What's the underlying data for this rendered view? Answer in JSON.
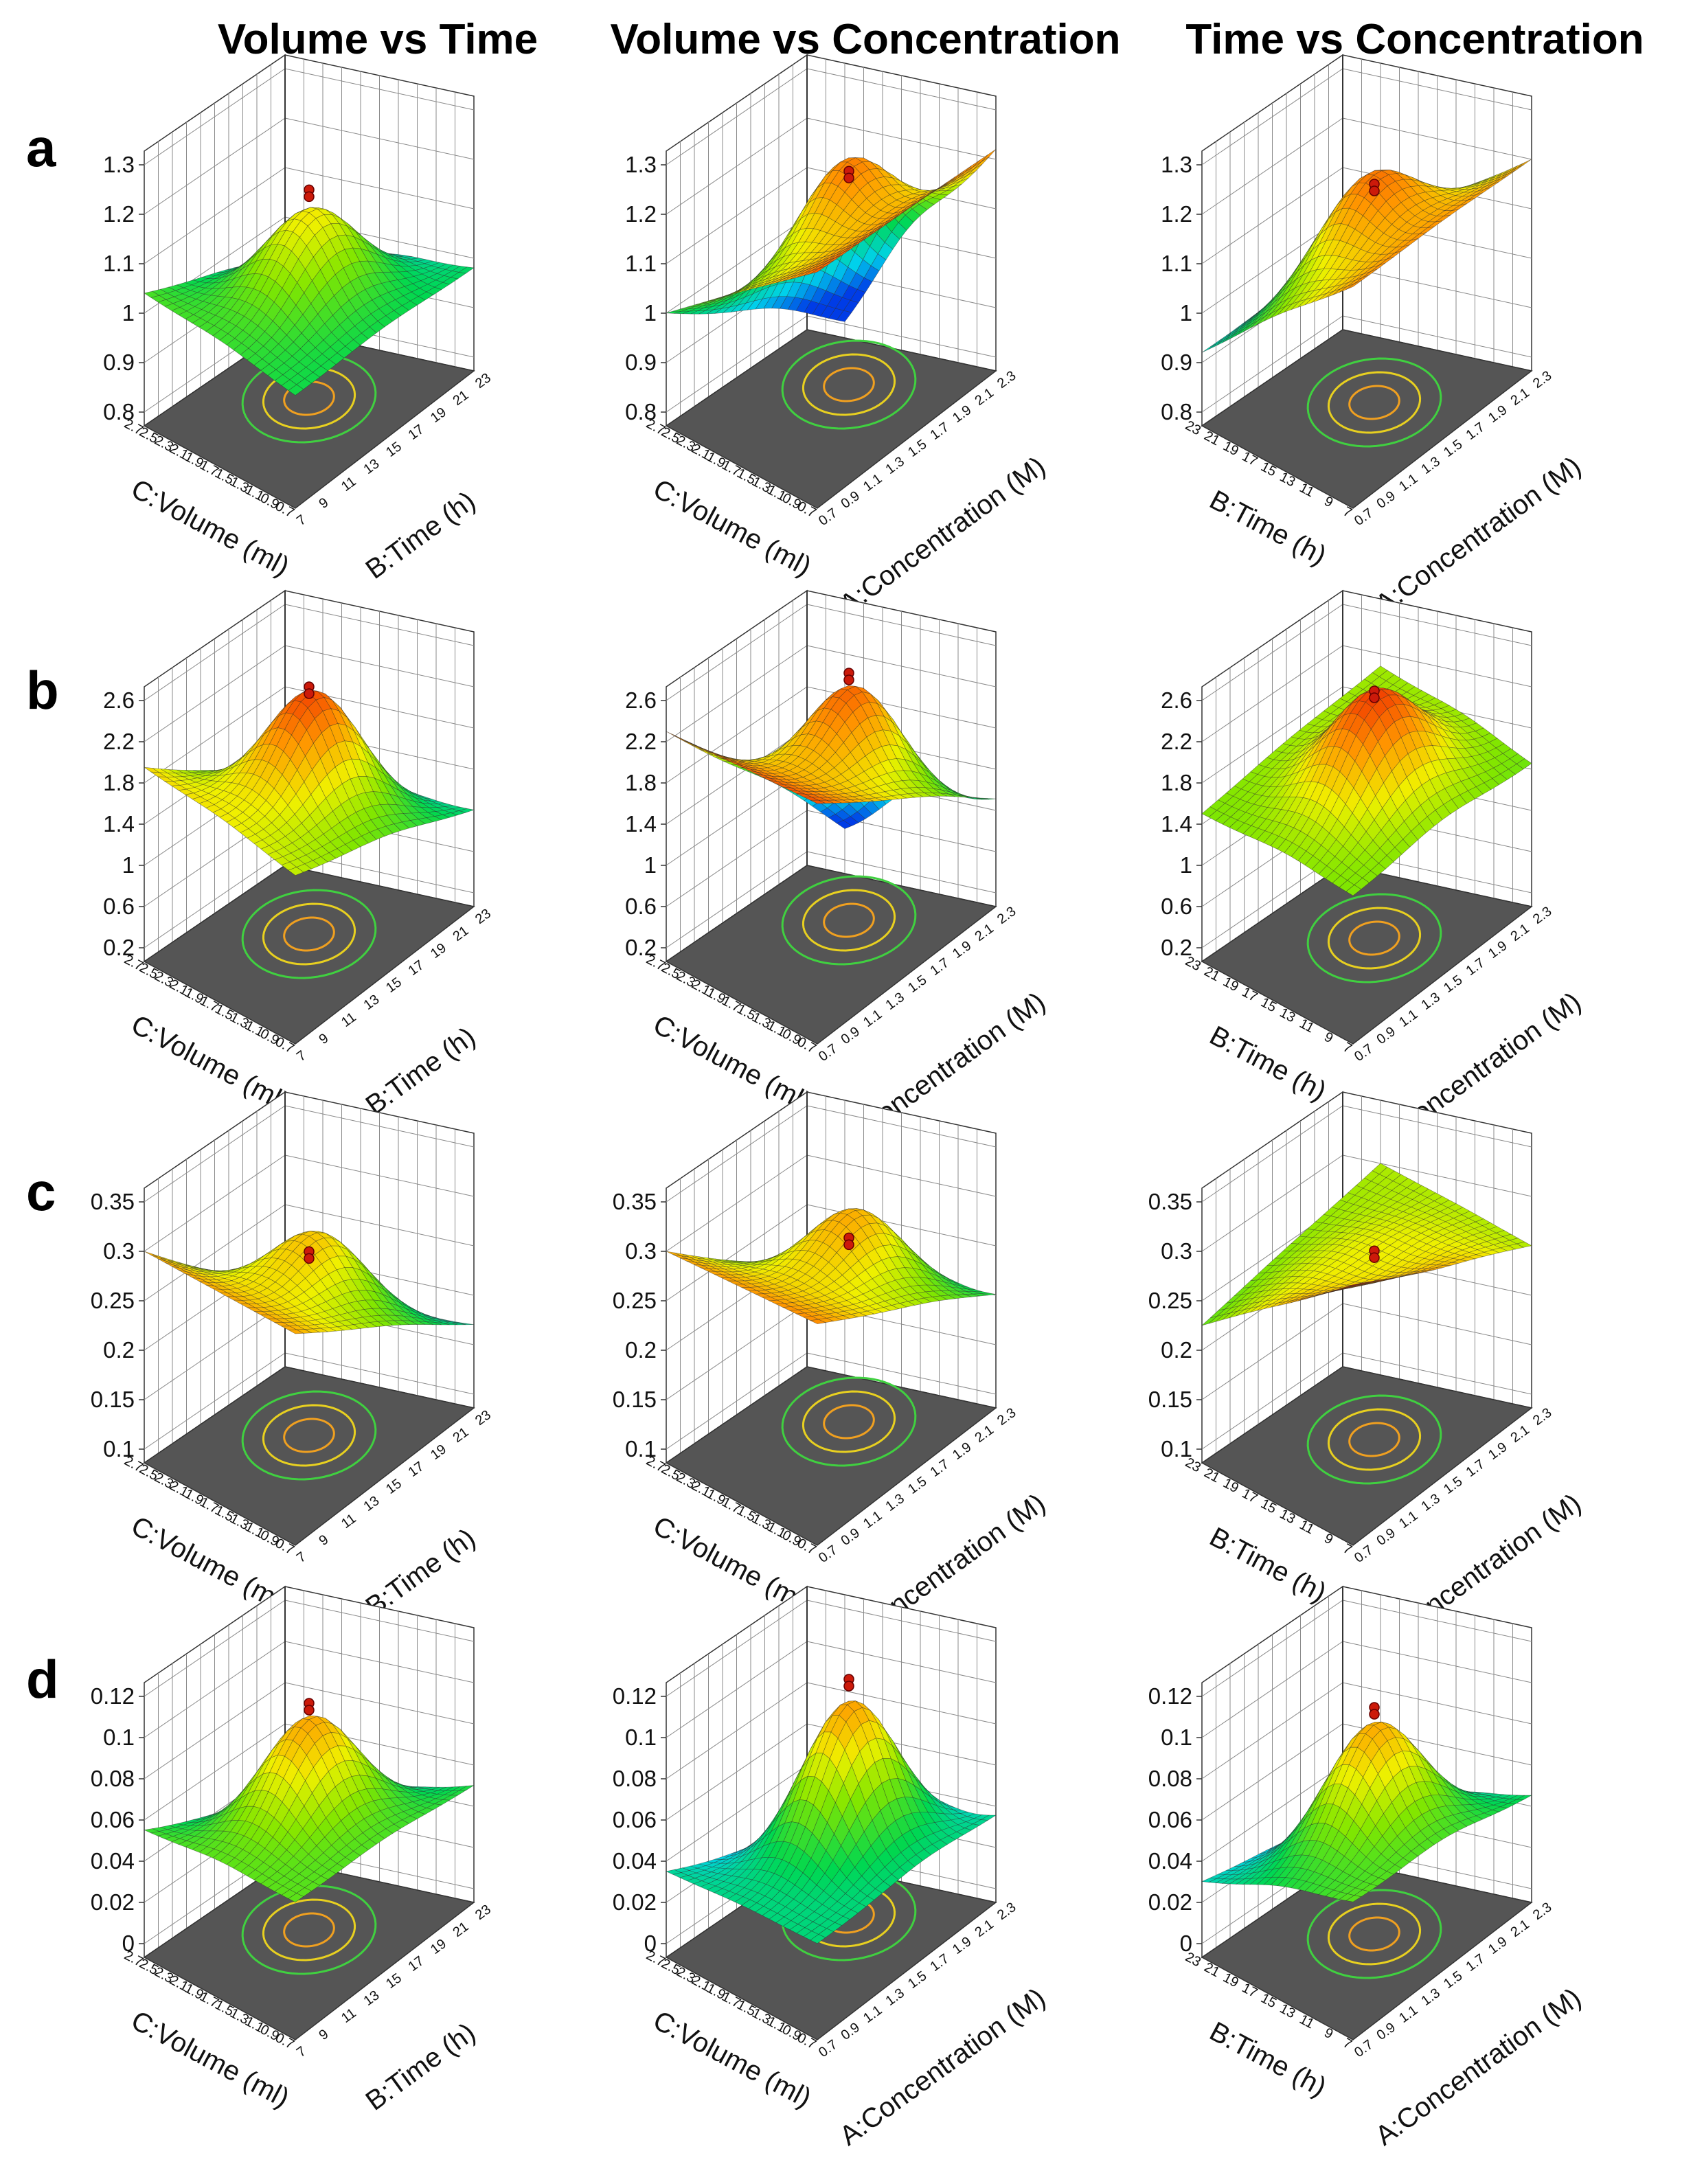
{
  "figure": {
    "column_titles": [
      "Volume vs Time",
      "Volume vs Concentration",
      "Time vs Concentration"
    ],
    "row_labels": [
      "a",
      "b",
      "c",
      "d"
    ]
  },
  "colors": {
    "floor": "#555555",
    "grid": "#8a8a8a",
    "axis": "#333333",
    "marker": "#cc1a0a"
  },
  "chart_data": [
    {
      "type": "surface",
      "row": "a",
      "column_title": "Volume vs Time",
      "model": "vt",
      "zlim": [
        0.8,
        1.3
      ],
      "zticks": [
        "0.8",
        "0.9",
        "1",
        "1.1",
        "1.2",
        "1.3"
      ],
      "xlabel": "C:Volume (ml)",
      "xticks": [
        "0.7",
        "0.9",
        "1.1",
        "1.3",
        "1.5",
        "1.7",
        "1.9",
        "2.1",
        "2.3",
        "2.5",
        "2.7"
      ],
      "ylabel": "B:Time (h)",
      "yticks": [
        "7",
        "9",
        "11",
        "13",
        "15",
        "17",
        "19",
        "21",
        "23"
      ],
      "corners": [
        1.04,
        1.0,
        0.98,
        0.84
      ],
      "peak": 1.18,
      "point": 1.18
    },
    {
      "type": "surface",
      "row": "a",
      "column_title": "Volume vs Concentration",
      "model": "vc",
      "zlim": [
        0.8,
        1.3
      ],
      "zticks": [
        "0.8",
        "0.9",
        "1",
        "1.1",
        "1.2",
        "1.3"
      ],
      "xlabel": "C:Volume (ml)",
      "xticks": [
        "0.7",
        "0.9",
        "1.1",
        "1.3",
        "1.5",
        "1.7",
        "1.9",
        "2.1",
        "2.3",
        "2.5",
        "2.7"
      ],
      "ylabel": "A:Concentration (M)",
      "yticks": [
        "0.7",
        "0.9",
        "1.1",
        "1.3",
        "1.5",
        "1.7",
        "1.9",
        "2.1",
        "2.3"
      ],
      "corners": [
        1.0,
        1.25,
        1.22,
        0.7
      ],
      "peak": 1.26,
      "point": 1.19
    },
    {
      "type": "surface",
      "row": "a",
      "column_title": "Time vs Concentration",
      "model": "tc",
      "zlim": [
        0.8,
        1.3
      ],
      "zticks": [
        "0.8",
        "0.9",
        "1",
        "1.1",
        "1.2",
        "1.3"
      ],
      "xlabel": "B:Time (h)",
      "xticks": [
        "7",
        "9",
        "11",
        "13",
        "15",
        "17",
        "19",
        "21",
        "23"
      ],
      "ylabel": "A:Concentration (M)",
      "yticks": [
        "0.7",
        "0.9",
        "1.1",
        "1.3",
        "1.5",
        "1.7",
        "1.9",
        "2.1",
        "2.3"
      ],
      "corners": [
        0.92,
        1.22,
        1.2,
        0.88
      ],
      "peak": 1.26,
      "point": 1.2
    },
    {
      "type": "surface",
      "row": "b",
      "column_title": "Volume vs Time",
      "model": "vt",
      "zlim": [
        0.2,
        2.6
      ],
      "zticks": [
        "0.2",
        "0.6",
        "1",
        "1.4",
        "1.8",
        "2.2",
        "2.6"
      ],
      "xlabel": "C:Volume (ml)",
      "xticks": [
        "0.7",
        "0.9",
        "1.1",
        "1.3",
        "1.5",
        "1.7",
        "1.9",
        "2.1",
        "2.3",
        "2.5",
        "2.7"
      ],
      "ylabel": "B:Time (h)",
      "yticks": [
        "7",
        "9",
        "11",
        "13",
        "15",
        "17",
        "19",
        "21",
        "23"
      ],
      "corners": [
        1.95,
        1.7,
        1.0,
        0.4
      ],
      "peak": 2.6,
      "point": 2.4
    },
    {
      "type": "surface",
      "row": "b",
      "column_title": "Volume vs Concentration",
      "model": "vc",
      "zlim": [
        0.2,
        2.6
      ],
      "zticks": [
        "0.2",
        "0.6",
        "1",
        "1.4",
        "1.8",
        "2.2",
        "2.6"
      ],
      "xlabel": "C:Volume (ml)",
      "xticks": [
        "0.7",
        "0.9",
        "1.1",
        "1.3",
        "1.5",
        "1.7",
        "1.9",
        "2.1",
        "2.3",
        "2.5",
        "2.7"
      ],
      "ylabel": "A:Concentration (M)",
      "yticks": [
        "0.7",
        "0.9",
        "1.1",
        "1.3",
        "1.5",
        "1.7",
        "1.9",
        "2.1",
        "2.3"
      ],
      "corners": [
        2.3,
        2.4,
        1.1,
        0.0
      ],
      "peak": 2.5,
      "point": 2.4
    },
    {
      "type": "surface",
      "row": "b",
      "column_title": "Time vs Concentration",
      "model": "tc",
      "zlim": [
        0.2,
        2.6
      ],
      "zticks": [
        "0.2",
        "0.6",
        "1",
        "1.4",
        "1.8",
        "2.2",
        "2.6"
      ],
      "xlabel": "B:Time (h)",
      "xticks": [
        "7",
        "9",
        "11",
        "13",
        "15",
        "17",
        "19",
        "21",
        "23"
      ],
      "ylabel": "A:Concentration (M)",
      "yticks": [
        "0.7",
        "0.9",
        "1.1",
        "1.3",
        "1.5",
        "1.7",
        "1.9",
        "2.1",
        "2.3"
      ],
      "corners": [
        1.5,
        1.5,
        1.45,
        1.6
      ],
      "peak": 2.6,
      "point": 2.4
    },
    {
      "type": "surface",
      "row": "c",
      "column_title": "Volume vs Time",
      "model": "vt",
      "zlim": [
        0.1,
        0.35
      ],
      "zticks": [
        "0.1",
        "0.15",
        "0.2",
        "0.25",
        "0.3",
        "0.35"
      ],
      "xlabel": "C:Volume (ml)",
      "xticks": [
        "0.7",
        "0.9",
        "1.1",
        "1.3",
        "1.5",
        "1.7",
        "1.9",
        "2.1",
        "2.3",
        "2.5",
        "2.7"
      ],
      "ylabel": "B:Time (h)",
      "yticks": [
        "7",
        "9",
        "11",
        "13",
        "15",
        "17",
        "19",
        "21",
        "23"
      ],
      "corners": [
        0.3,
        0.3,
        0.17,
        0.1
      ],
      "peak": 0.3,
      "point": 0.265
    },
    {
      "type": "surface",
      "row": "c",
      "column_title": "Volume vs Concentration",
      "model": "vc",
      "zlim": [
        0.1,
        0.35
      ],
      "zticks": [
        "0.1",
        "0.15",
        "0.2",
        "0.25",
        "0.3",
        "0.35"
      ],
      "xlabel": "C:Volume (ml)",
      "xticks": [
        "0.7",
        "0.9",
        "1.1",
        "1.3",
        "1.5",
        "1.7",
        "1.9",
        "2.1",
        "2.3",
        "2.5",
        "2.7"
      ],
      "ylabel": "A:Concentration (M)",
      "yticks": [
        "0.7",
        "0.9",
        "1.1",
        "1.3",
        "1.5",
        "1.7",
        "1.9",
        "2.1",
        "2.3"
      ],
      "corners": [
        0.3,
        0.31,
        0.2,
        0.13
      ],
      "peak": 0.31,
      "point": 0.265
    },
    {
      "type": "surface",
      "row": "c",
      "column_title": "Time vs Concentration",
      "model": "tc",
      "zlim": [
        0.1,
        0.35
      ],
      "zticks": [
        "0.1",
        "0.15",
        "0.2",
        "0.25",
        "0.3",
        "0.35"
      ],
      "xlabel": "B:Time (h)",
      "xticks": [
        "7",
        "9",
        "11",
        "13",
        "15",
        "17",
        "19",
        "21",
        "23"
      ],
      "ylabel": "A:Concentration (M)",
      "yticks": [
        "0.7",
        "0.9",
        "1.1",
        "1.3",
        "1.5",
        "1.7",
        "1.9",
        "2.1",
        "2.3"
      ],
      "corners": [
        0.225,
        0.35,
        0.25,
        0.25
      ],
      "peak": 0.27,
      "point": 0.27
    },
    {
      "type": "surface",
      "row": "d",
      "column_title": "Volume vs Time",
      "model": "vt",
      "zlim": [
        0,
        0.12
      ],
      "zticks": [
        "0",
        "0.02",
        "0.04",
        "0.06",
        "0.08",
        "0.1",
        "0.12"
      ],
      "xlabel": "C:Volume (ml)",
      "xticks": [
        "0.7",
        "0.9",
        "1.1",
        "1.3",
        "1.5",
        "1.7",
        "1.9",
        "2.1",
        "2.3",
        "2.5",
        "2.7"
      ],
      "ylabel": "B:Time (h)",
      "yticks": [
        "7",
        "9",
        "11",
        "13",
        "15",
        "17",
        "19",
        "21",
        "23"
      ],
      "corners": [
        0.055,
        0.06,
        0.05,
        0.0
      ],
      "peak": 0.105,
      "point": 0.1
    },
    {
      "type": "surface",
      "row": "d",
      "column_title": "Volume vs Concentration",
      "model": "vc",
      "zlim": [
        0,
        0.12
      ],
      "zticks": [
        "0",
        "0.02",
        "0.04",
        "0.06",
        "0.08",
        "0.1",
        "0.12"
      ],
      "xlabel": "C:Volume (ml)",
      "xticks": [
        "0.7",
        "0.9",
        "1.1",
        "1.3",
        "1.5",
        "1.7",
        "1.9",
        "2.1",
        "2.3",
        "2.5",
        "2.7"
      ],
      "ylabel": "A:Concentration (M)",
      "yticks": [
        "0.7",
        "0.9",
        "1.1",
        "1.3",
        "1.5",
        "1.7",
        "1.9",
        "2.1",
        "2.3"
      ],
      "corners": [
        0.035,
        0.04,
        0.035,
        -0.015
      ],
      "peak": 0.11,
      "point": 0.105
    },
    {
      "type": "surface",
      "row": "d",
      "column_title": "Time vs Concentration",
      "model": "tc",
      "zlim": [
        0,
        0.12
      ],
      "zticks": [
        "0",
        "0.02",
        "0.04",
        "0.06",
        "0.08",
        "0.1",
        "0.12"
      ],
      "xlabel": "B:Time (h)",
      "xticks": [
        "7",
        "9",
        "11",
        "13",
        "15",
        "17",
        "19",
        "21",
        "23"
      ],
      "ylabel": "A:Concentration (M)",
      "yticks": [
        "0.7",
        "0.9",
        "1.1",
        "1.3",
        "1.5",
        "1.7",
        "1.9",
        "2.1",
        "2.3"
      ],
      "corners": [
        0.03,
        0.06,
        0.045,
        0.0
      ],
      "peak": 0.105,
      "point": 0.1
    }
  ]
}
